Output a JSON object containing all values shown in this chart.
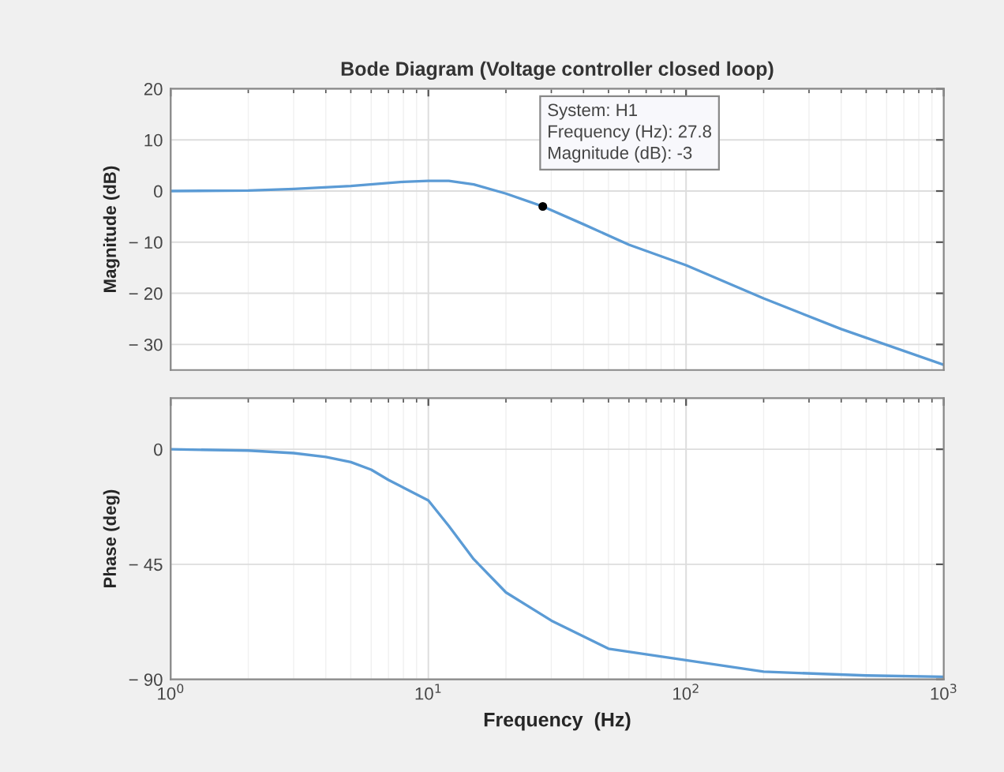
{
  "chart_data": [
    {
      "type": "line",
      "title": "Bode Diagram (Voltage controller closed loop)",
      "ylabel": "Magnitude (dB)",
      "log": "x",
      "grid": true,
      "tick_labels": "y",
      "xlim": [
        1,
        1000
      ],
      "ylim": [
        -35,
        20
      ],
      "yticks": [
        20,
        10,
        0,
        {
          "value": -10,
          "label": "− 10"
        },
        {
          "value": -20,
          "label": "− 20"
        },
        {
          "value": -30,
          "label": "− 30"
        }
      ],
      "series": [
        {
          "color": "#5b9bd5",
          "x": [
            1,
            2,
            3,
            5,
            8,
            10,
            12,
            15,
            20,
            27.8,
            40,
            60,
            100,
            200,
            400,
            1000
          ],
          "values": [
            0,
            0.1,
            0.4,
            1.0,
            1.8,
            2.0,
            2.0,
            1.3,
            -0.5,
            -3,
            -6.5,
            -10.5,
            -14.5,
            -21,
            -27,
            -34
          ]
        }
      ],
      "annotations": [
        {
          "text": "System: H1\nFrequency (Hz): 27.8\nMagnitude (dB): -3",
          "x": 27.8,
          "y": -3
        }
      ]
    },
    {
      "type": "line",
      "xlabel": "Frequency  (Hz)",
      "ylabel": "Phase (deg)",
      "log": "x",
      "grid": true,
      "xlim": [
        1,
        1000
      ],
      "ylim": [
        -90,
        20
      ],
      "xticks": [
        {
          "value": 1,
          "label": "10$^{0}$"
        },
        {
          "value": 10,
          "label": "10$^{1}$"
        },
        {
          "value": 100,
          "label": "10$^{2}$"
        },
        {
          "value": 1000,
          "label": "10$^{3}$"
        }
      ],
      "yticks": [
        0,
        {
          "value": -45,
          "label": "− 45"
        },
        {
          "value": -90,
          "label": "− 90"
        }
      ],
      "series": [
        {
          "color": "#5b9bd5",
          "x": [
            1,
            2,
            3,
            4,
            5,
            6,
            7,
            8,
            10,
            12,
            15,
            20,
            30,
            50,
            100,
            200,
            500,
            1000
          ],
          "values": [
            0,
            -0.5,
            -1.5,
            -3,
            -5,
            -8,
            -12,
            -15,
            -20,
            -30,
            -43,
            -56,
            -67,
            -78,
            -82.5,
            -87,
            -88.5,
            -89
          ]
        }
      ]
    }
  ]
}
